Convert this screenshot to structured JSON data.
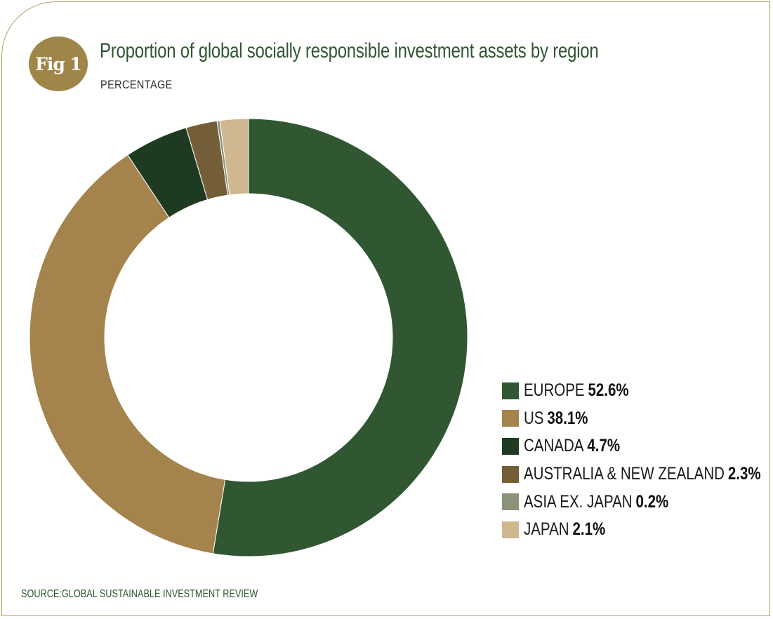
{
  "figure": {
    "badge": "Fig 1"
  },
  "header": {
    "title": "Proportion of global socially responsible investment assets by region",
    "subtitle": "PERCENTAGE"
  },
  "source": "SOURCE:GLOBAL SUSTAINABLE INVESTMENT REVIEW",
  "chart_data": {
    "type": "pie",
    "style": "donut",
    "title": "Proportion of global socially responsible investment assets by region",
    "subtitle": "PERCENTAGE",
    "legend_position": "bottom-right",
    "slices": [
      {
        "label": "EUROPE",
        "value": 52.6,
        "display": "52.6%",
        "color": "#305632"
      },
      {
        "label": "US",
        "value": 38.1,
        "display": "38.1%",
        "color": "#a4844c"
      },
      {
        "label": "CANADA",
        "value": 4.7,
        "display": "4.7%",
        "color": "#1e3a20"
      },
      {
        "label": "AUSTRALIA & NEW ZEALAND",
        "value": 2.3,
        "display": "2.3%",
        "color": "#735e38"
      },
      {
        "label": "ASIA EX. JAPAN",
        "value": 0.2,
        "display": "0.2%",
        "color": "#8a927a"
      },
      {
        "label": "JAPAN",
        "value": 2.1,
        "display": "2.1%",
        "color": "#cfb890"
      }
    ]
  }
}
